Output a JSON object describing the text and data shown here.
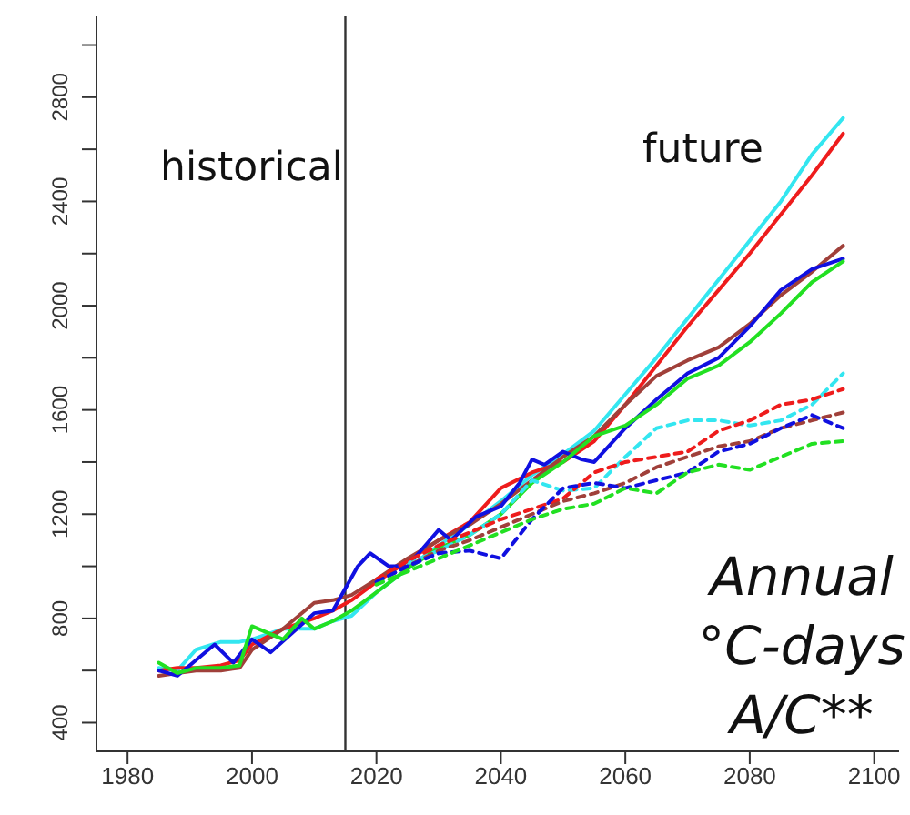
{
  "chart_data": {
    "type": "line",
    "xlim": [
      1975,
      2104
    ],
    "xticks": [
      1980,
      2000,
      2020,
      2040,
      2060,
      2080,
      2100
    ],
    "ylim": [
      290,
      3110
    ],
    "yticks": [
      400,
      {
        "value": 600,
        "label": null
      },
      800,
      {
        "value": 1000,
        "label": null
      },
      1200,
      {
        "value": 1400,
        "label": null
      },
      1600,
      {
        "value": 1800,
        "label": null
      },
      2000,
      {
        "value": 2200,
        "label": null
      },
      2400,
      {
        "value": 2600,
        "label": null
      },
      2800,
      {
        "value": 3000,
        "label": null
      }
    ],
    "ref_lines": [
      {
        "axis": "x",
        "value": 2015,
        "color": "#333333"
      }
    ],
    "annotations": [
      "historical",
      "future",
      "Annual °C-days A/C**"
    ],
    "grid": false,
    "legend": false,
    "marker": "none",
    "series": [
      {
        "color": "#33e6f0",
        "line_style": "solid",
        "x": [
          1985,
          1988,
          1991,
          1995,
          1998,
          2000,
          2005,
          2010,
          2013,
          2016,
          2020,
          2025,
          2030,
          2035,
          2040,
          2045,
          2050,
          2055,
          2060,
          2065,
          2070,
          2075,
          2080,
          2085,
          2090,
          2095
        ],
        "values": [
          610,
          600,
          680,
          710,
          710,
          720,
          760,
          760,
          790,
          810,
          900,
          990,
          1080,
          1160,
          1250,
          1350,
          1430,
          1520,
          1660,
          1800,
          1950,
          2100,
          2250,
          2400,
          2580,
          2720
        ]
      },
      {
        "color": "#ee1c1c",
        "line_style": "solid",
        "x": [
          1985,
          1988,
          1991,
          1995,
          1998,
          2000,
          2005,
          2010,
          2013,
          2016,
          2020,
          2025,
          2030,
          2035,
          2040,
          2045,
          2050,
          2055,
          2060,
          2065,
          2070,
          2075,
          2080,
          2085,
          2090,
          2095
        ],
        "values": [
          600,
          610,
          610,
          620,
          640,
          700,
          760,
          800,
          830,
          870,
          940,
          1020,
          1100,
          1170,
          1300,
          1360,
          1400,
          1480,
          1620,
          1770,
          1920,
          2060,
          2200,
          2350,
          2500,
          2660
        ]
      },
      {
        "color": "#a0403a",
        "line_style": "solid",
        "x": [
          1985,
          1988,
          1991,
          1995,
          1998,
          2000,
          2005,
          2010,
          2013,
          2016,
          2020,
          2025,
          2030,
          2035,
          2040,
          2045,
          2050,
          2055,
          2060,
          2065,
          2070,
          2075,
          2080,
          2085,
          2090,
          2095
        ],
        "values": [
          580,
          590,
          600,
          600,
          610,
          680,
          760,
          860,
          870,
          890,
          950,
          1030,
          1100,
          1160,
          1240,
          1330,
          1420,
          1500,
          1620,
          1730,
          1790,
          1840,
          1930,
          2040,
          2130,
          2230
        ]
      },
      {
        "color": "#1010e0",
        "line_style": "solid",
        "x": [
          1985,
          1988,
          1994,
          1997,
          2000,
          2003,
          2010,
          2013,
          2017,
          2019,
          2022,
          2025,
          2030,
          2032,
          2036,
          2040,
          2043,
          2045,
          2047,
          2050,
          2053,
          2055,
          2060,
          2065,
          2070,
          2075,
          2080,
          2085,
          2090,
          2095
        ],
        "values": [
          600,
          580,
          700,
          630,
          720,
          670,
          820,
          830,
          1000,
          1050,
          1000,
          1000,
          1140,
          1100,
          1190,
          1230,
          1320,
          1410,
          1390,
          1440,
          1410,
          1400,
          1530,
          1640,
          1740,
          1800,
          1920,
          2060,
          2140,
          2180
        ]
      },
      {
        "color": "#22e022",
        "line_style": "solid",
        "x": [
          1985,
          1988,
          1991,
          1995,
          1998,
          2000,
          2005,
          2008,
          2010,
          2013,
          2016,
          2020,
          2025,
          2030,
          2035,
          2040,
          2045,
          2050,
          2055,
          2060,
          2065,
          2070,
          2075,
          2080,
          2085,
          2090,
          2095
        ],
        "values": [
          630,
          590,
          610,
          610,
          620,
          770,
          720,
          800,
          760,
          790,
          830,
          900,
          990,
          1070,
          1120,
          1200,
          1320,
          1400,
          1500,
          1540,
          1620,
          1720,
          1770,
          1860,
          1970,
          2090,
          2170
        ]
      },
      {
        "color": "#33e6f0",
        "line_style": "dashed",
        "x": [
          2025,
          2030,
          2035,
          2040,
          2045,
          2050,
          2055,
          2060,
          2065,
          2070,
          2075,
          2080,
          2085,
          2090,
          2095
        ],
        "values": [
          1010,
          1060,
          1120,
          1200,
          1330,
          1290,
          1300,
          1420,
          1530,
          1560,
          1560,
          1540,
          1560,
          1620,
          1740
        ]
      },
      {
        "color": "#ee1c1c",
        "line_style": "dashed",
        "x": [
          2020,
          2025,
          2030,
          2035,
          2040,
          2045,
          2050,
          2055,
          2060,
          2065,
          2070,
          2075,
          2080,
          2085,
          2090,
          2095
        ],
        "values": [
          950,
          1020,
          1080,
          1130,
          1180,
          1220,
          1260,
          1360,
          1400,
          1420,
          1440,
          1520,
          1560,
          1620,
          1640,
          1680
        ]
      },
      {
        "color": "#a0403a",
        "line_style": "dashed",
        "x": [
          2020,
          2025,
          2030,
          2035,
          2040,
          2045,
          2050,
          2055,
          2060,
          2065,
          2070,
          2075,
          2080,
          2085,
          2090,
          2095
        ],
        "values": [
          940,
          1000,
          1060,
          1100,
          1150,
          1200,
          1250,
          1280,
          1320,
          1380,
          1420,
          1460,
          1480,
          1530,
          1560,
          1590
        ]
      },
      {
        "color": "#1010e0",
        "line_style": "dashed",
        "x": [
          2020,
          2025,
          2030,
          2035,
          2040,
          2045,
          2050,
          2055,
          2060,
          2065,
          2070,
          2075,
          2080,
          2085,
          2090,
          2095
        ],
        "values": [
          940,
          1000,
          1050,
          1060,
          1030,
          1180,
          1300,
          1320,
          1300,
          1330,
          1360,
          1440,
          1470,
          1530,
          1580,
          1530
        ]
      },
      {
        "color": "#22e022",
        "line_style": "dashed",
        "x": [
          2020,
          2025,
          2030,
          2035,
          2040,
          2045,
          2050,
          2055,
          2060,
          2065,
          2070,
          2075,
          2080,
          2085,
          2090,
          2095
        ],
        "values": [
          930,
          980,
          1030,
          1080,
          1130,
          1180,
          1220,
          1240,
          1300,
          1280,
          1360,
          1390,
          1370,
          1420,
          1470,
          1480
        ]
      }
    ]
  }
}
